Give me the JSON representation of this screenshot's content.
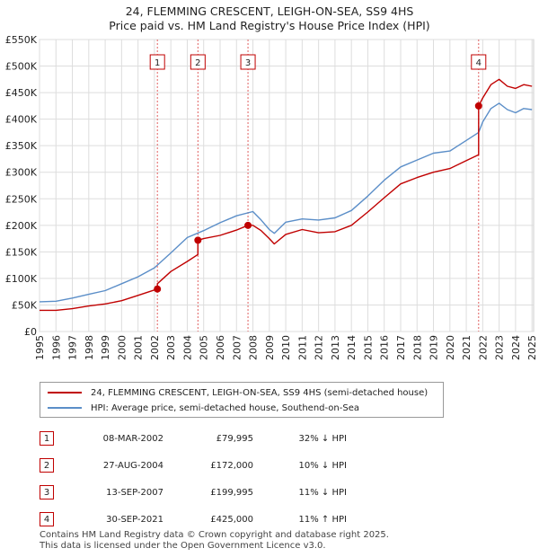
{
  "title_line1": "24, FLEMMING CRESCENT, LEIGH-ON-SEA, SS9 4HS",
  "title_line2": "Price paid vs. HM Land Registry's House Price Index (HPI)",
  "colors": {
    "property": "#c00000",
    "hpi": "#5b8ec8",
    "grid": "#dddddd",
    "sale_line": "#e06060"
  },
  "chart_data": {
    "type": "line",
    "title": "24, FLEMMING CRESCENT, LEIGH-ON-SEA, SS9 4HS — Price paid vs. HM Land Registry's House Price Index (HPI)",
    "xlabel": "",
    "ylabel": "",
    "xlim": [
      1995,
      2025.1
    ],
    "ylim": [
      0,
      550000
    ],
    "grid": true,
    "x_ticks": [
      1995,
      1996,
      1997,
      1998,
      1999,
      2000,
      2001,
      2002,
      2003,
      2004,
      2005,
      2006,
      2007,
      2008,
      2009,
      2010,
      2011,
      2012,
      2013,
      2014,
      2015,
      2016,
      2017,
      2018,
      2019,
      2020,
      2021,
      2022,
      2023,
      2024,
      2025
    ],
    "y_ticks": [
      0,
      50000,
      100000,
      150000,
      200000,
      250000,
      300000,
      350000,
      400000,
      450000,
      500000,
      550000
    ],
    "y_tick_labels": [
      "£0",
      "£50K",
      "£100K",
      "£150K",
      "£200K",
      "£250K",
      "£300K",
      "£350K",
      "£400K",
      "£450K",
      "£500K",
      "£550K"
    ],
    "series": [
      {
        "name": "24, FLEMMING CRESCENT, LEIGH-ON-SEA, SS9 4HS (semi-detached house)",
        "color": "#c00000",
        "x": [
          1995,
          1996,
          1997,
          1998,
          1999,
          2000,
          2001,
          2002.18,
          2002.18,
          2003,
          2004,
          2004.65,
          2004.65,
          2005,
          2006,
          2007,
          2007.7,
          2007.7,
          2008,
          2008.5,
          2009,
          2009.3,
          2010,
          2011,
          2012,
          2013,
          2014,
          2015,
          2016,
          2017,
          2018,
          2019,
          2020,
          2021,
          2021.75,
          2021.75,
          2022,
          2022.5,
          2023,
          2023.5,
          2024,
          2024.5,
          2025
        ],
        "values": [
          40000,
          40000,
          43000,
          48000,
          52000,
          58000,
          68000,
          79995,
          90000,
          113000,
          132000,
          145000,
          172000,
          175000,
          181000,
          191000,
          199995,
          199995,
          200000,
          190000,
          175000,
          165000,
          183000,
          192000,
          186000,
          188000,
          200000,
          225000,
          252000,
          278000,
          290000,
          300000,
          307000,
          322000,
          333000,
          425000,
          440000,
          465000,
          475000,
          462000,
          458000,
          465000,
          462000
        ]
      },
      {
        "name": "HPI: Average price, semi-detached house, Southend-on-Sea",
        "color": "#5b8ec8",
        "x": [
          1995,
          1996,
          1997,
          1998,
          1999,
          2000,
          2001,
          2002,
          2003,
          2004,
          2005,
          2006,
          2007,
          2008,
          2008.5,
          2009,
          2009.3,
          2010,
          2011,
          2012,
          2013,
          2014,
          2015,
          2016,
          2017,
          2018,
          2019,
          2020,
          2021,
          2021.75,
          2022,
          2022.5,
          2023,
          2023.5,
          2024,
          2024.5,
          2025
        ],
        "values": [
          56000,
          57000,
          63000,
          70000,
          77000,
          90000,
          103000,
          120000,
          148000,
          177000,
          190000,
          205000,
          218000,
          226000,
          210000,
          192000,
          185000,
          206000,
          212000,
          210000,
          214000,
          228000,
          255000,
          285000,
          310000,
          323000,
          336000,
          340000,
          360000,
          375000,
          395000,
          420000,
          430000,
          418000,
          412000,
          420000,
          418000
        ]
      }
    ],
    "sales": [
      {
        "label": "1",
        "date": "08-MAR-2002",
        "x": 2002.18,
        "price": 79995
      },
      {
        "label": "2",
        "date": "27-AUG-2004",
        "x": 2004.65,
        "price": 172000
      },
      {
        "label": "3",
        "date": "13-SEP-2007",
        "x": 2007.7,
        "price": 199995
      },
      {
        "label": "4",
        "date": "30-SEP-2021",
        "x": 2021.75,
        "price": 425000
      }
    ]
  },
  "legend": {
    "property_label": "24, FLEMMING CRESCENT, LEIGH-ON-SEA, SS9 4HS (semi-detached house)",
    "hpi_label": "HPI: Average price, semi-detached house, Southend-on-Sea"
  },
  "sales_table": [
    {
      "num": "1",
      "date": "08-MAR-2002",
      "price": "£79,995",
      "hpi": "32% ↓ HPI"
    },
    {
      "num": "2",
      "date": "27-AUG-2004",
      "price": "£172,000",
      "hpi": "10% ↓ HPI"
    },
    {
      "num": "3",
      "date": "13-SEP-2007",
      "price": "£199,995",
      "hpi": "11% ↓ HPI"
    },
    {
      "num": "4",
      "date": "30-SEP-2021",
      "price": "£425,000",
      "hpi": "11% ↑ HPI"
    }
  ],
  "footer": {
    "line1": "Contains HM Land Registry data © Crown copyright and database right 2025.",
    "line2": "This data is licensed under the Open Government Licence v3.0."
  }
}
